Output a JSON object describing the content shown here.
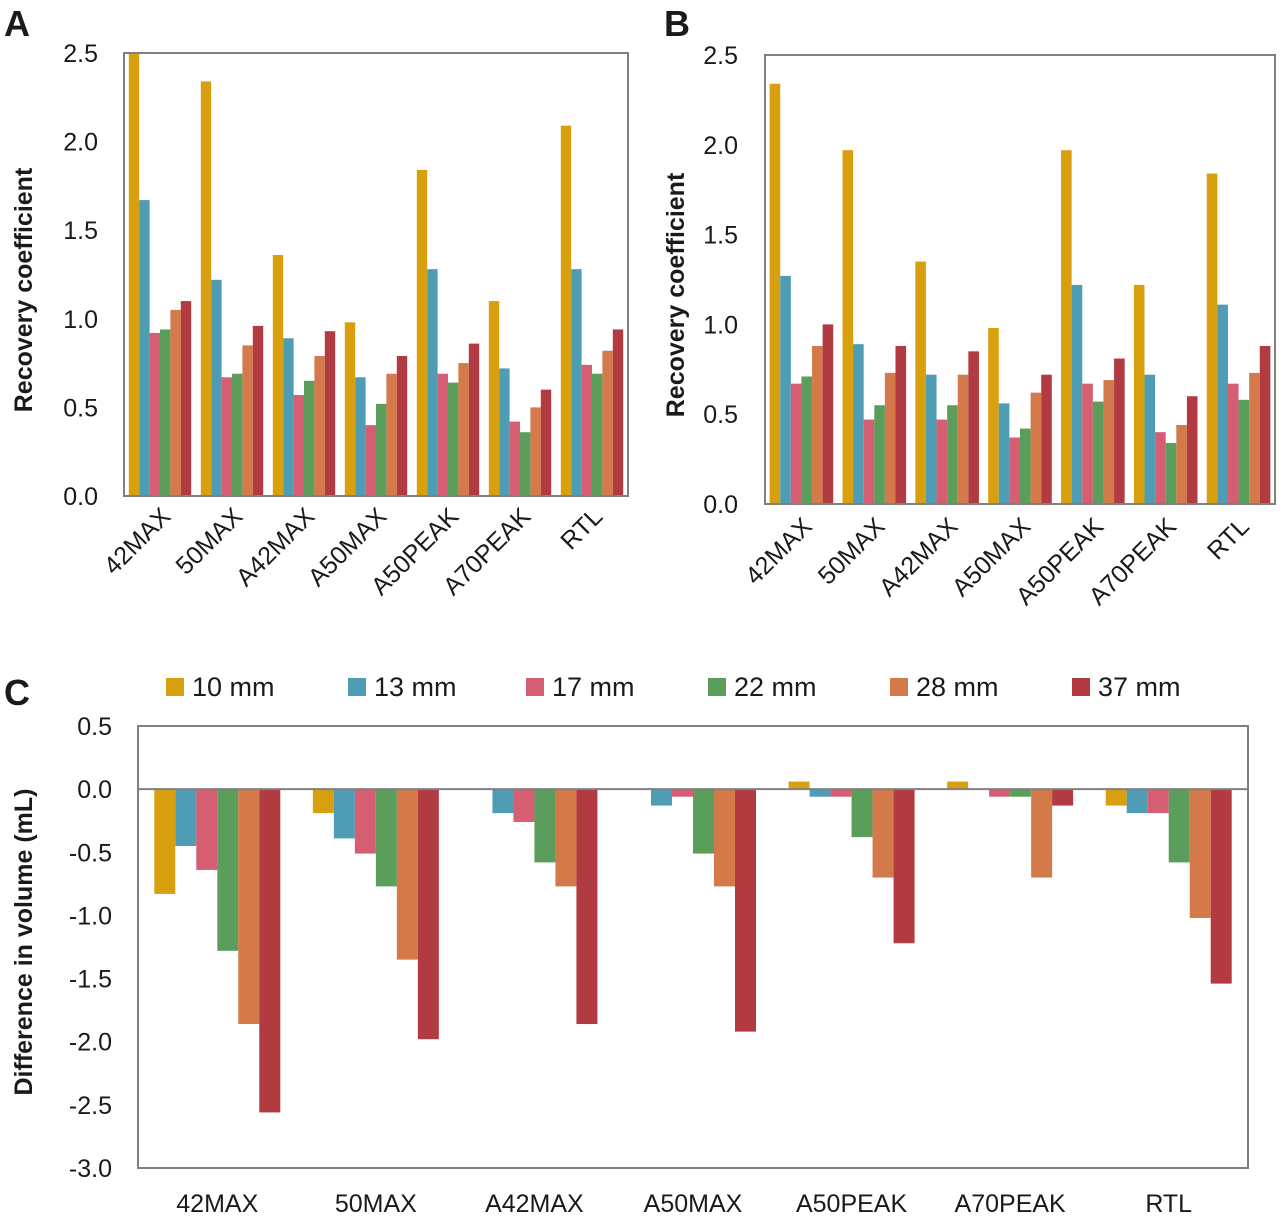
{
  "colors": {
    "10 mm": "#D8A00E",
    "13 mm": "#4F9CB5",
    "17 mm": "#D55E73",
    "22 mm": "#5B9E5C",
    "28 mm": "#D47A4A",
    "37 mm": "#B23B42",
    "frame": "#808080",
    "text": "#1a1a1a"
  },
  "chart_data": [
    {
      "panel_label": "A",
      "type": "bar",
      "title": "",
      "xlabel": "",
      "ylabel": "Recovery coefficient",
      "ylim": [
        0,
        2.5
      ],
      "yticks": [
        "0.0",
        "0.5",
        "1.0",
        "1.5",
        "2.0",
        "2.5"
      ],
      "categories": [
        "42MAX",
        "50MAX",
        "A42MAX",
        "A50MAX",
        "A50PEAK",
        "A70PEAK",
        "RTL"
      ],
      "series": [
        {
          "name": "10 mm",
          "values": [
            2.5,
            2.34,
            1.36,
            0.98,
            1.84,
            1.1,
            2.09
          ]
        },
        {
          "name": "13 mm",
          "values": [
            1.67,
            1.22,
            0.89,
            0.67,
            1.28,
            0.72,
            1.28
          ]
        },
        {
          "name": "17 mm",
          "values": [
            0.92,
            0.67,
            0.57,
            0.4,
            0.69,
            0.42,
            0.74
          ]
        },
        {
          "name": "22 mm",
          "values": [
            0.94,
            0.69,
            0.65,
            0.52,
            0.64,
            0.36,
            0.69
          ]
        },
        {
          "name": "28 mm",
          "values": [
            1.05,
            0.85,
            0.79,
            0.69,
            0.75,
            0.5,
            0.82
          ]
        },
        {
          "name": "37 mm",
          "values": [
            1.1,
            0.96,
            0.93,
            0.79,
            0.86,
            0.6,
            0.94
          ]
        }
      ]
    },
    {
      "panel_label": "B",
      "type": "bar",
      "title": "",
      "xlabel": "",
      "ylabel": "Recovery coefficient",
      "ylim": [
        0,
        2.5
      ],
      "yticks": [
        "0.0",
        "0.5",
        "1.0",
        "1.5",
        "2.0",
        "2.5"
      ],
      "categories": [
        "42MAX",
        "50MAX",
        "A42MAX",
        "A50MAX",
        "A50PEAK",
        "A70PEAK",
        "RTL"
      ],
      "series": [
        {
          "name": "10 mm",
          "values": [
            2.34,
            1.97,
            1.35,
            0.98,
            1.97,
            1.22,
            1.84
          ]
        },
        {
          "name": "13 mm",
          "values": [
            1.27,
            0.89,
            0.72,
            0.56,
            1.22,
            0.72,
            1.11
          ]
        },
        {
          "name": "17 mm",
          "values": [
            0.67,
            0.47,
            0.47,
            0.37,
            0.67,
            0.4,
            0.67
          ]
        },
        {
          "name": "22 mm",
          "values": [
            0.71,
            0.55,
            0.55,
            0.42,
            0.57,
            0.34,
            0.58
          ]
        },
        {
          "name": "28 mm",
          "values": [
            0.88,
            0.73,
            0.72,
            0.62,
            0.69,
            0.44,
            0.73
          ]
        },
        {
          "name": "37 mm",
          "values": [
            1.0,
            0.88,
            0.85,
            0.72,
            0.81,
            0.6,
            0.88
          ]
        }
      ]
    },
    {
      "panel_label": "C",
      "type": "bar",
      "title": "",
      "xlabel": "",
      "ylabel": "Difference in volume (mL)",
      "ylim": [
        -3.0,
        0.5
      ],
      "yticks": [
        "0.5",
        "0.0",
        "-0.5",
        "-1.0",
        "-1.5",
        "-2.0",
        "-2.5",
        "-3.0"
      ],
      "legend": [
        "10 mm",
        "13 mm",
        "17 mm",
        "22 mm",
        "28 mm",
        "37 mm"
      ],
      "legend_position": "top",
      "categories": [
        "42MAX",
        "50MAX",
        "A42MAX",
        "A50MAX",
        "A50PEAK",
        "A70PEAK",
        "RTL"
      ],
      "series": [
        {
          "name": "10 mm",
          "values": [
            -0.83,
            -0.19,
            0.0,
            0.0,
            0.06,
            0.06,
            -0.13
          ]
        },
        {
          "name": "13 mm",
          "values": [
            -0.45,
            -0.39,
            -0.19,
            -0.13,
            -0.06,
            0.0,
            -0.19
          ]
        },
        {
          "name": "17 mm",
          "values": [
            -0.64,
            -0.51,
            -0.26,
            -0.06,
            -0.06,
            -0.06,
            -0.19
          ]
        },
        {
          "name": "22 mm",
          "values": [
            -1.28,
            -0.77,
            -0.58,
            -0.51,
            -0.38,
            -0.06,
            -0.58
          ]
        },
        {
          "name": "28 mm",
          "values": [
            -1.86,
            -1.35,
            -0.77,
            -0.77,
            -0.7,
            -0.7,
            -1.02
          ]
        },
        {
          "name": "37 mm",
          "values": [
            -2.56,
            -1.98,
            -1.86,
            -1.92,
            -1.22,
            -0.13,
            -1.54
          ]
        }
      ]
    }
  ]
}
